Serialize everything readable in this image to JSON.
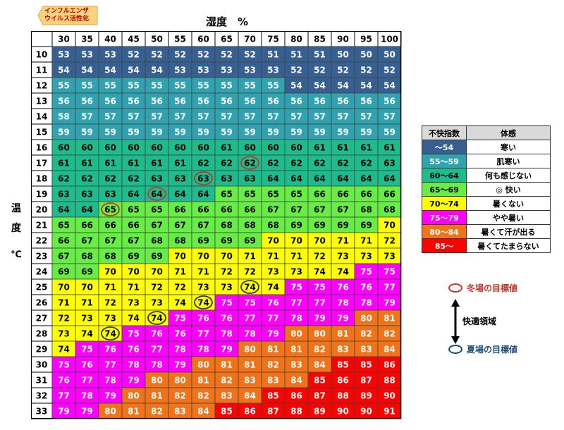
{
  "tag_lines": [
    "インフルエンザ",
    "ウイルス活性化"
  ],
  "x_title": "湿度　%",
  "y_title_chars": [
    "温",
    "度"
  ],
  "y_unit": "℃",
  "chart_data": {
    "type": "heatmap",
    "title": "",
    "xlabel": "湿度　%",
    "ylabel": "温度 ℃",
    "x": [
      30,
      35,
      40,
      45,
      50,
      55,
      60,
      65,
      70,
      75,
      80,
      85,
      90,
      95,
      100
    ],
    "y": [
      10,
      11,
      12,
      13,
      14,
      15,
      16,
      17,
      18,
      19,
      20,
      21,
      22,
      23,
      24,
      25,
      26,
      27,
      28,
      29,
      30,
      31,
      32,
      33
    ],
    "values": [
      [
        53,
        53,
        53,
        52,
        52,
        52,
        52,
        52,
        52,
        51,
        51,
        51,
        50,
        50,
        50
      ],
      [
        54,
        54,
        54,
        54,
        54,
        53,
        53,
        53,
        53,
        53,
        52,
        52,
        52,
        52,
        52
      ],
      [
        55,
        55,
        55,
        55,
        55,
        55,
        55,
        55,
        55,
        55,
        54,
        54,
        54,
        54,
        54
      ],
      [
        56,
        56,
        56,
        56,
        56,
        56,
        56,
        56,
        56,
        56,
        56,
        56,
        56,
        56,
        56
      ],
      [
        58,
        57,
        57,
        57,
        57,
        57,
        57,
        57,
        57,
        57,
        57,
        57,
        57,
        57,
        57
      ],
      [
        59,
        59,
        59,
        59,
        59,
        59,
        59,
        59,
        59,
        59,
        59,
        59,
        59,
        59,
        59
      ],
      [
        60,
        60,
        60,
        60,
        60,
        60,
        60,
        61,
        60,
        60,
        60,
        61,
        61,
        61,
        61
      ],
      [
        61,
        61,
        61,
        61,
        61,
        61,
        62,
        62,
        62,
        62,
        62,
        62,
        62,
        62,
        63
      ],
      [
        62,
        62,
        62,
        62,
        63,
        63,
        63,
        63,
        63,
        64,
        64,
        64,
        64,
        64,
        64
      ],
      [
        63,
        63,
        63,
        64,
        64,
        64,
        64,
        65,
        65,
        65,
        65,
        66,
        66,
        66,
        66
      ],
      [
        64,
        64,
        65,
        65,
        65,
        66,
        66,
        66,
        66,
        67,
        67,
        67,
        67,
        68,
        68
      ],
      [
        65,
        66,
        66,
        66,
        67,
        67,
        67,
        68,
        68,
        68,
        69,
        69,
        69,
        69,
        70
      ],
      [
        66,
        67,
        67,
        67,
        68,
        68,
        69,
        69,
        69,
        70,
        70,
        70,
        71,
        71,
        72
      ],
      [
        67,
        68,
        68,
        69,
        69,
        70,
        70,
        70,
        71,
        71,
        71,
        72,
        73,
        73,
        73
      ],
      [
        69,
        69,
        70,
        70,
        70,
        71,
        71,
        72,
        72,
        73,
        73,
        74,
        74,
        75,
        75
      ],
      [
        70,
        70,
        71,
        71,
        72,
        72,
        73,
        73,
        74,
        74,
        75,
        75,
        76,
        76,
        77
      ],
      [
        71,
        71,
        72,
        73,
        73,
        74,
        74,
        75,
        75,
        76,
        77,
        77,
        78,
        78,
        79
      ],
      [
        72,
        73,
        73,
        74,
        74,
        75,
        76,
        76,
        77,
        77,
        78,
        79,
        79,
        80,
        81
      ],
      [
        73,
        74,
        74,
        75,
        76,
        76,
        77,
        78,
        78,
        79,
        80,
        80,
        81,
        82,
        82
      ],
      [
        74,
        75,
        76,
        76,
        77,
        78,
        78,
        79,
        80,
        81,
        81,
        82,
        83,
        83,
        84
      ],
      [
        75,
        76,
        77,
        78,
        78,
        79,
        80,
        81,
        81,
        82,
        83,
        84,
        85,
        85,
        86
      ],
      [
        76,
        77,
        78,
        79,
        80,
        80,
        81,
        82,
        83,
        83,
        84,
        85,
        86,
        87,
        88
      ],
      [
        77,
        78,
        79,
        80,
        81,
        82,
        82,
        83,
        84,
        85,
        86,
        87,
        88,
        89,
        90
      ],
      [
        79,
        79,
        80,
        81,
        82,
        83,
        84,
        85,
        86,
        87,
        88,
        89,
        90,
        90,
        91
      ]
    ],
    "winter_targets": [
      [
        40,
        20
      ],
      [
        50,
        19
      ],
      [
        60,
        18
      ],
      [
        70,
        17
      ]
    ],
    "summer_targets": [
      [
        40,
        28
      ],
      [
        50,
        27
      ],
      [
        60,
        26
      ],
      [
        70,
        25
      ]
    ],
    "color_bands": [
      {
        "max": 54,
        "color": "#366092",
        "text": "#ffffff"
      },
      {
        "max": 59,
        "color": "#31a3b0",
        "text": "#ffffff"
      },
      {
        "max": 64,
        "color": "#1dbc8c",
        "text": "#000000"
      },
      {
        "max": 69,
        "color": "#66ee44",
        "text": "#000000"
      },
      {
        "max": 74,
        "color": "#ffff00",
        "text": "#000000"
      },
      {
        "max": 79,
        "color": "#ff00ff",
        "text": "#ffffff"
      },
      {
        "max": 84,
        "color": "#f27317",
        "text": "#ffffff"
      },
      {
        "max": 99,
        "color": "#ff0000",
        "text": "#ffffff"
      }
    ]
  },
  "legend": {
    "header_index": "不快指数",
    "header_feel": "体感",
    "rows": [
      {
        "range": "～54",
        "feel": "寒い",
        "color": "#366092",
        "text": "#ffffff"
      },
      {
        "range": "55～59",
        "feel": "肌寒い",
        "color": "#31a3b0",
        "text": "#ffffff"
      },
      {
        "range": "60～64",
        "feel": "何も感じない",
        "color": "#1dbc8c",
        "text": "#000000"
      },
      {
        "range": "65～69",
        "feel": "◎ 快い",
        "color": "#66ee44",
        "text": "#000000"
      },
      {
        "range": "70～74",
        "feel": "暑くない",
        "color": "#ffff00",
        "text": "#000000"
      },
      {
        "range": "75～79",
        "feel": "やや暑い",
        "color": "#ff00ff",
        "text": "#ffffff"
      },
      {
        "range": "80～84",
        "feel": "暑くて汗が出る",
        "color": "#f27317",
        "text": "#ffffff"
      },
      {
        "range": "85～",
        "feel": "暑くてたまらない",
        "color": "#ff0000",
        "text": "#ffffff"
      }
    ]
  },
  "notes": {
    "winter_label": "冬場の目標値",
    "comfort_label": "快適領域",
    "summer_label": "夏場の目標値",
    "winter_color": "#c0392b",
    "summer_color": "#1f4e79"
  }
}
